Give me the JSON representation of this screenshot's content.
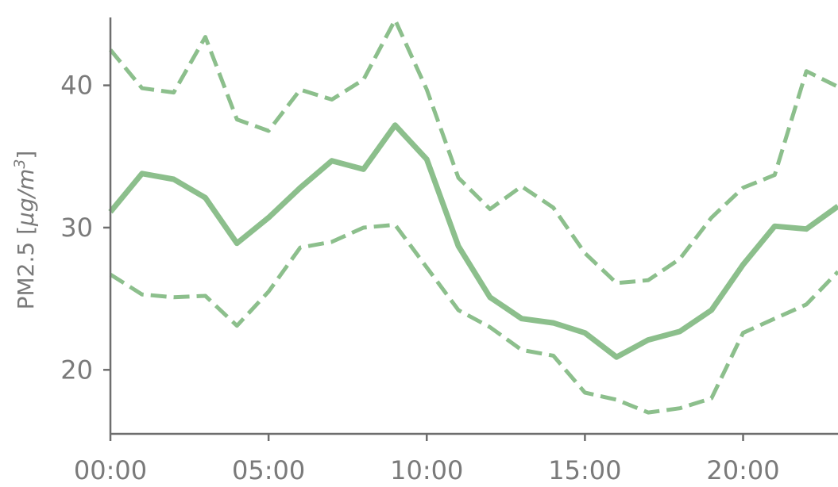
{
  "chart_data": {
    "type": "line",
    "ylabel_prefix": "PM2.5 [",
    "ylabel_unit_mu": "μg/m",
    "ylabel_sup": "3",
    "ylabel_suffix": "]",
    "ylabel": "PM2.5 [μg/m3]",
    "xlim": [
      0,
      23
    ],
    "ylim": [
      15.5,
      46
    ],
    "x_ticks": [
      0,
      5,
      10,
      15,
      20
    ],
    "x_tick_labels": [
      "00:00",
      "05:00",
      "10:00",
      "15:00",
      "20:00"
    ],
    "y_ticks": [
      20,
      30,
      40
    ],
    "y_tick_labels": [
      "20",
      "30",
      "40"
    ],
    "color": "#8cbf8c",
    "x": [
      0,
      1,
      2,
      3,
      4,
      5,
      6,
      7,
      8,
      9,
      10,
      11,
      12,
      13,
      14,
      15,
      16,
      17,
      18,
      19,
      20,
      21,
      22,
      23
    ],
    "series": [
      {
        "style": "dashed",
        "values": [
          42.5,
          39.8,
          39.5,
          43.4,
          37.6,
          36.8,
          39.7,
          39.0,
          40.4,
          44.6,
          39.7,
          33.5,
          31.3,
          32.9,
          31.4,
          28.2,
          26.1,
          26.3,
          27.8,
          30.7,
          32.8,
          33.7,
          41.0,
          39.9
        ]
      },
      {
        "style": "solid",
        "values": [
          31.1,
          33.8,
          33.4,
          32.1,
          28.9,
          30.7,
          32.8,
          34.7,
          34.1,
          37.2,
          34.8,
          28.7,
          25.1,
          23.6,
          23.3,
          22.6,
          20.9,
          22.1,
          22.7,
          24.2,
          27.4,
          30.1,
          29.9,
          31.5
        ]
      },
      {
        "style": "dashed",
        "values": [
          26.7,
          25.3,
          25.1,
          25.2,
          23.1,
          25.5,
          28.6,
          29.0,
          30.0,
          30.2,
          27.2,
          24.2,
          23.0,
          21.4,
          21.0,
          18.4,
          17.9,
          17.0,
          17.3,
          18.0,
          22.6,
          23.6,
          24.6,
          26.9
        ]
      }
    ]
  }
}
